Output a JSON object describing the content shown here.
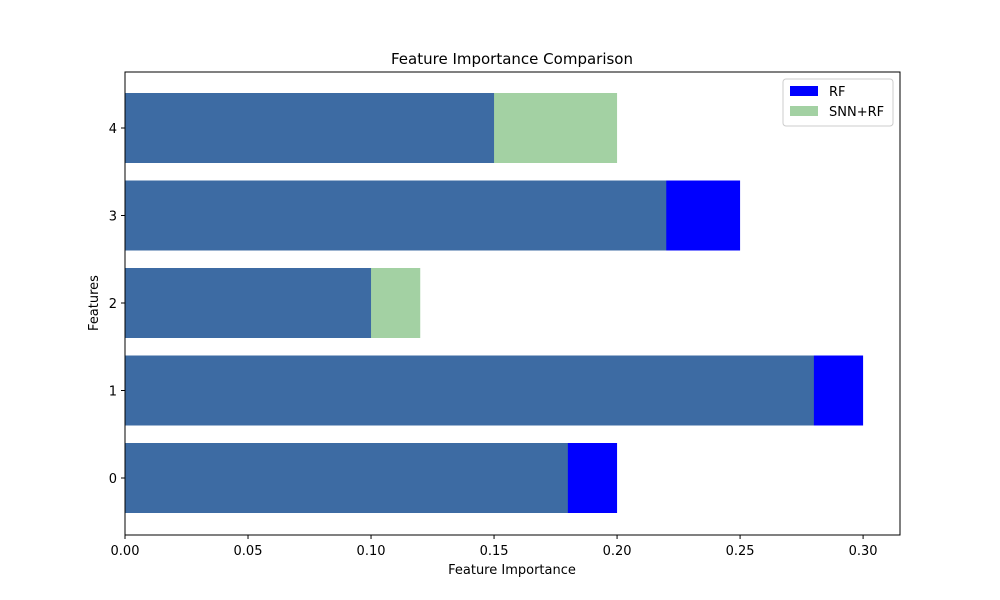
{
  "chart_data": {
    "type": "bar",
    "orientation": "horizontal",
    "overlay": true,
    "title": "Feature Importance Comparison",
    "xlabel": "Feature Importance",
    "ylabel": "Features",
    "categories": [
      "0",
      "1",
      "2",
      "3",
      "4"
    ],
    "xlim": [
      0,
      0.315
    ],
    "xticks": [
      "0.00",
      "0.05",
      "0.10",
      "0.15",
      "0.20",
      "0.25",
      "0.30"
    ],
    "grid": false,
    "legend_position": "top-right",
    "series": [
      {
        "name": "RF",
        "color": "#0000ff",
        "values": [
          0.2,
          0.3,
          0.1,
          0.25,
          0.15
        ]
      },
      {
        "name": "SNN+RF",
        "color": "#66b266",
        "alpha": 0.6,
        "values": [
          0.18,
          0.28,
          0.12,
          0.22,
          0.2
        ]
      }
    ]
  }
}
